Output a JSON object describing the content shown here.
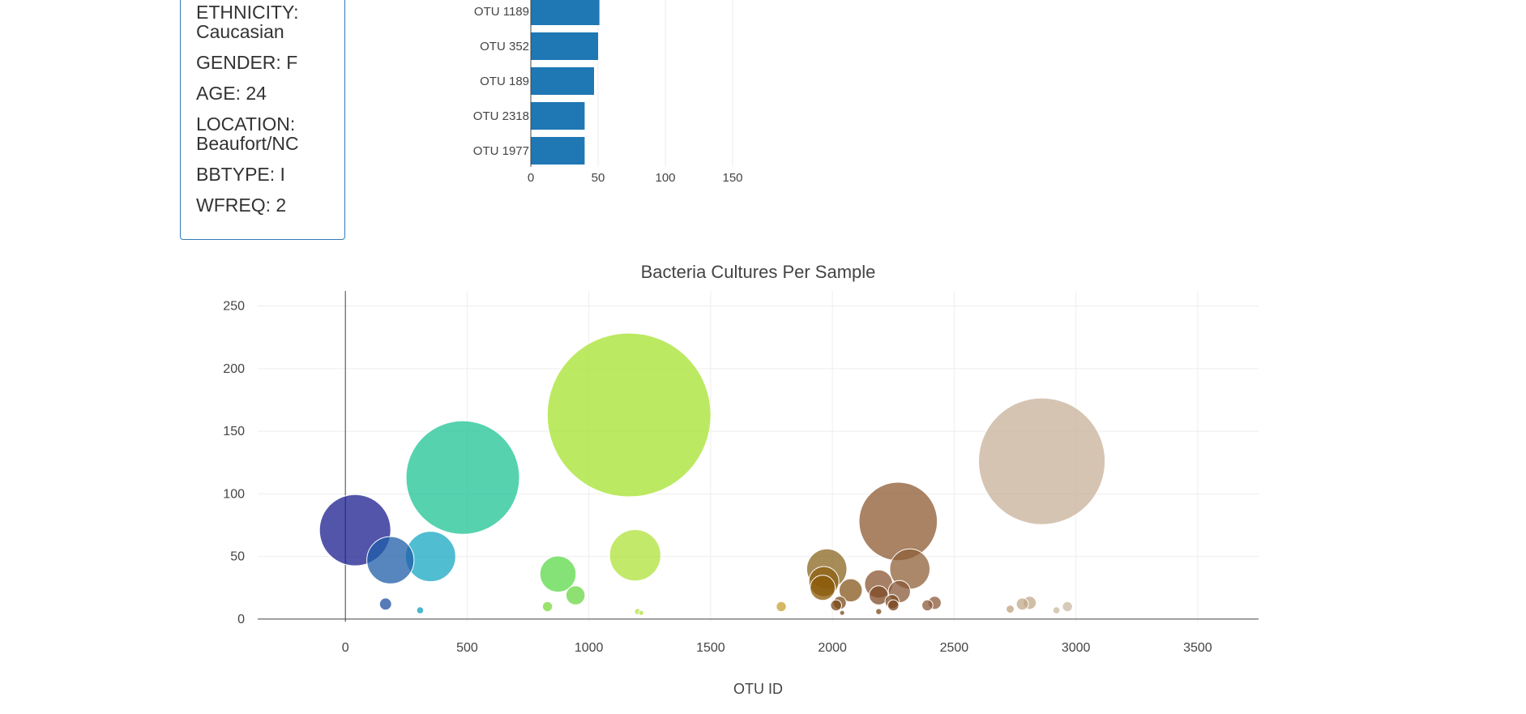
{
  "demographics": {
    "rows": [
      {
        "key": "ETHNICITY:",
        "value": "Caucasian"
      },
      {
        "key": "GENDER:",
        "value": "F"
      },
      {
        "key": "AGE:",
        "value": "24"
      },
      {
        "key": "LOCATION:",
        "value": "Beaufort/NC"
      },
      {
        "key": "BBTYPE:",
        "value": "I"
      },
      {
        "key": "WFREQ:",
        "value": "2"
      }
    ]
  },
  "chart_data": [
    {
      "type": "bar",
      "orientation": "horizontal",
      "categories": [
        "OTU 1189",
        "OTU 352",
        "OTU 189",
        "OTU 2318",
        "OTU 1977"
      ],
      "values": [
        51,
        50,
        47,
        40,
        40
      ],
      "xlim": [
        0,
        160
      ],
      "xticks": [
        0,
        50,
        100,
        150
      ],
      "color": "#1f77b4",
      "grid": true
    },
    {
      "type": "scatter",
      "subtype": "bubble",
      "title": "Bacteria Cultures Per Sample",
      "xlabel": "OTU ID",
      "ylabel": "",
      "xlim": [
        -360,
        3750
      ],
      "ylim": [
        -2,
        262
      ],
      "xticks": [
        0,
        500,
        1000,
        1500,
        2000,
        2500,
        3000,
        3500
      ],
      "yticks": [
        0,
        50,
        100,
        150,
        200,
        250
      ],
      "grid": true,
      "points": [
        {
          "x": 40,
          "y": 71,
          "size": 71,
          "color": "#1a1c8f"
        },
        {
          "x": 185,
          "y": 47,
          "size": 47,
          "color": "#1f5ea8"
        },
        {
          "x": 350,
          "y": 50,
          "size": 50,
          "color": "#17a7c1"
        },
        {
          "x": 482,
          "y": 113,
          "size": 113,
          "color": "#1ec394"
        },
        {
          "x": 165,
          "y": 12,
          "size": 12,
          "color": "#1f4ea0"
        },
        {
          "x": 307,
          "y": 7,
          "size": 7,
          "color": "#11a0be"
        },
        {
          "x": 1165,
          "y": 163,
          "size": 163,
          "color": "#a6e22e"
        },
        {
          "x": 1190,
          "y": 51,
          "size": 51,
          "color": "#afe23a"
        },
        {
          "x": 873,
          "y": 36,
          "size": 36,
          "color": "#5cd84a"
        },
        {
          "x": 945,
          "y": 19,
          "size": 19,
          "color": "#6ad644"
        },
        {
          "x": 830,
          "y": 10,
          "size": 10,
          "color": "#7ad83e"
        },
        {
          "x": 1200,
          "y": 6,
          "size": 6,
          "color": "#b2e23a"
        },
        {
          "x": 1215,
          "y": 5,
          "size": 5,
          "color": "#b2e23a"
        },
        {
          "x": 1790,
          "y": 10,
          "size": 10,
          "color": "#c8a030"
        },
        {
          "x": 1977,
          "y": 40,
          "size": 40,
          "color": "#8a6520"
        },
        {
          "x": 1965,
          "y": 30,
          "size": 30,
          "color": "#8c6010"
        },
        {
          "x": 1960,
          "y": 25,
          "size": 25,
          "color": "#8a5a08"
        },
        {
          "x": 2075,
          "y": 23,
          "size": 23,
          "color": "#86551c"
        },
        {
          "x": 2270,
          "y": 78,
          "size": 78,
          "color": "#8c5a30"
        },
        {
          "x": 2318,
          "y": 40,
          "size": 40,
          "color": "#8f6038"
        },
        {
          "x": 2190,
          "y": 28,
          "size": 28,
          "color": "#8a5430"
        },
        {
          "x": 2190,
          "y": 19,
          "size": 19,
          "color": "#7e4a25"
        },
        {
          "x": 2275,
          "y": 22,
          "size": 22,
          "color": "#8a5838"
        },
        {
          "x": 2245,
          "y": 14,
          "size": 14,
          "color": "#7a4a20"
        },
        {
          "x": 2250,
          "y": 11,
          "size": 11,
          "color": "#7a4520"
        },
        {
          "x": 2030,
          "y": 13,
          "size": 13,
          "color": "#7a4a1a"
        },
        {
          "x": 2015,
          "y": 11,
          "size": 11,
          "color": "#7a4a1a"
        },
        {
          "x": 2040,
          "y": 5,
          "size": 5,
          "color": "#7a4a1a"
        },
        {
          "x": 2190,
          "y": 6,
          "size": 6,
          "color": "#7a4a1a"
        },
        {
          "x": 2390,
          "y": 11,
          "size": 11,
          "color": "#8a5a38"
        },
        {
          "x": 2420,
          "y": 13,
          "size": 13,
          "color": "#8a5a38"
        },
        {
          "x": 2860,
          "y": 126,
          "size": 126,
          "color": "#c8b098"
        },
        {
          "x": 2730,
          "y": 8,
          "size": 8,
          "color": "#c0a080"
        },
        {
          "x": 2780,
          "y": 12,
          "size": 12,
          "color": "#c0a888"
        },
        {
          "x": 2810,
          "y": 13,
          "size": 13,
          "color": "#c0a888"
        },
        {
          "x": 2920,
          "y": 7,
          "size": 7,
          "color": "#c8b8a0"
        },
        {
          "x": 2965,
          "y": 10,
          "size": 10,
          "color": "#c8b8a0"
        }
      ]
    }
  ]
}
